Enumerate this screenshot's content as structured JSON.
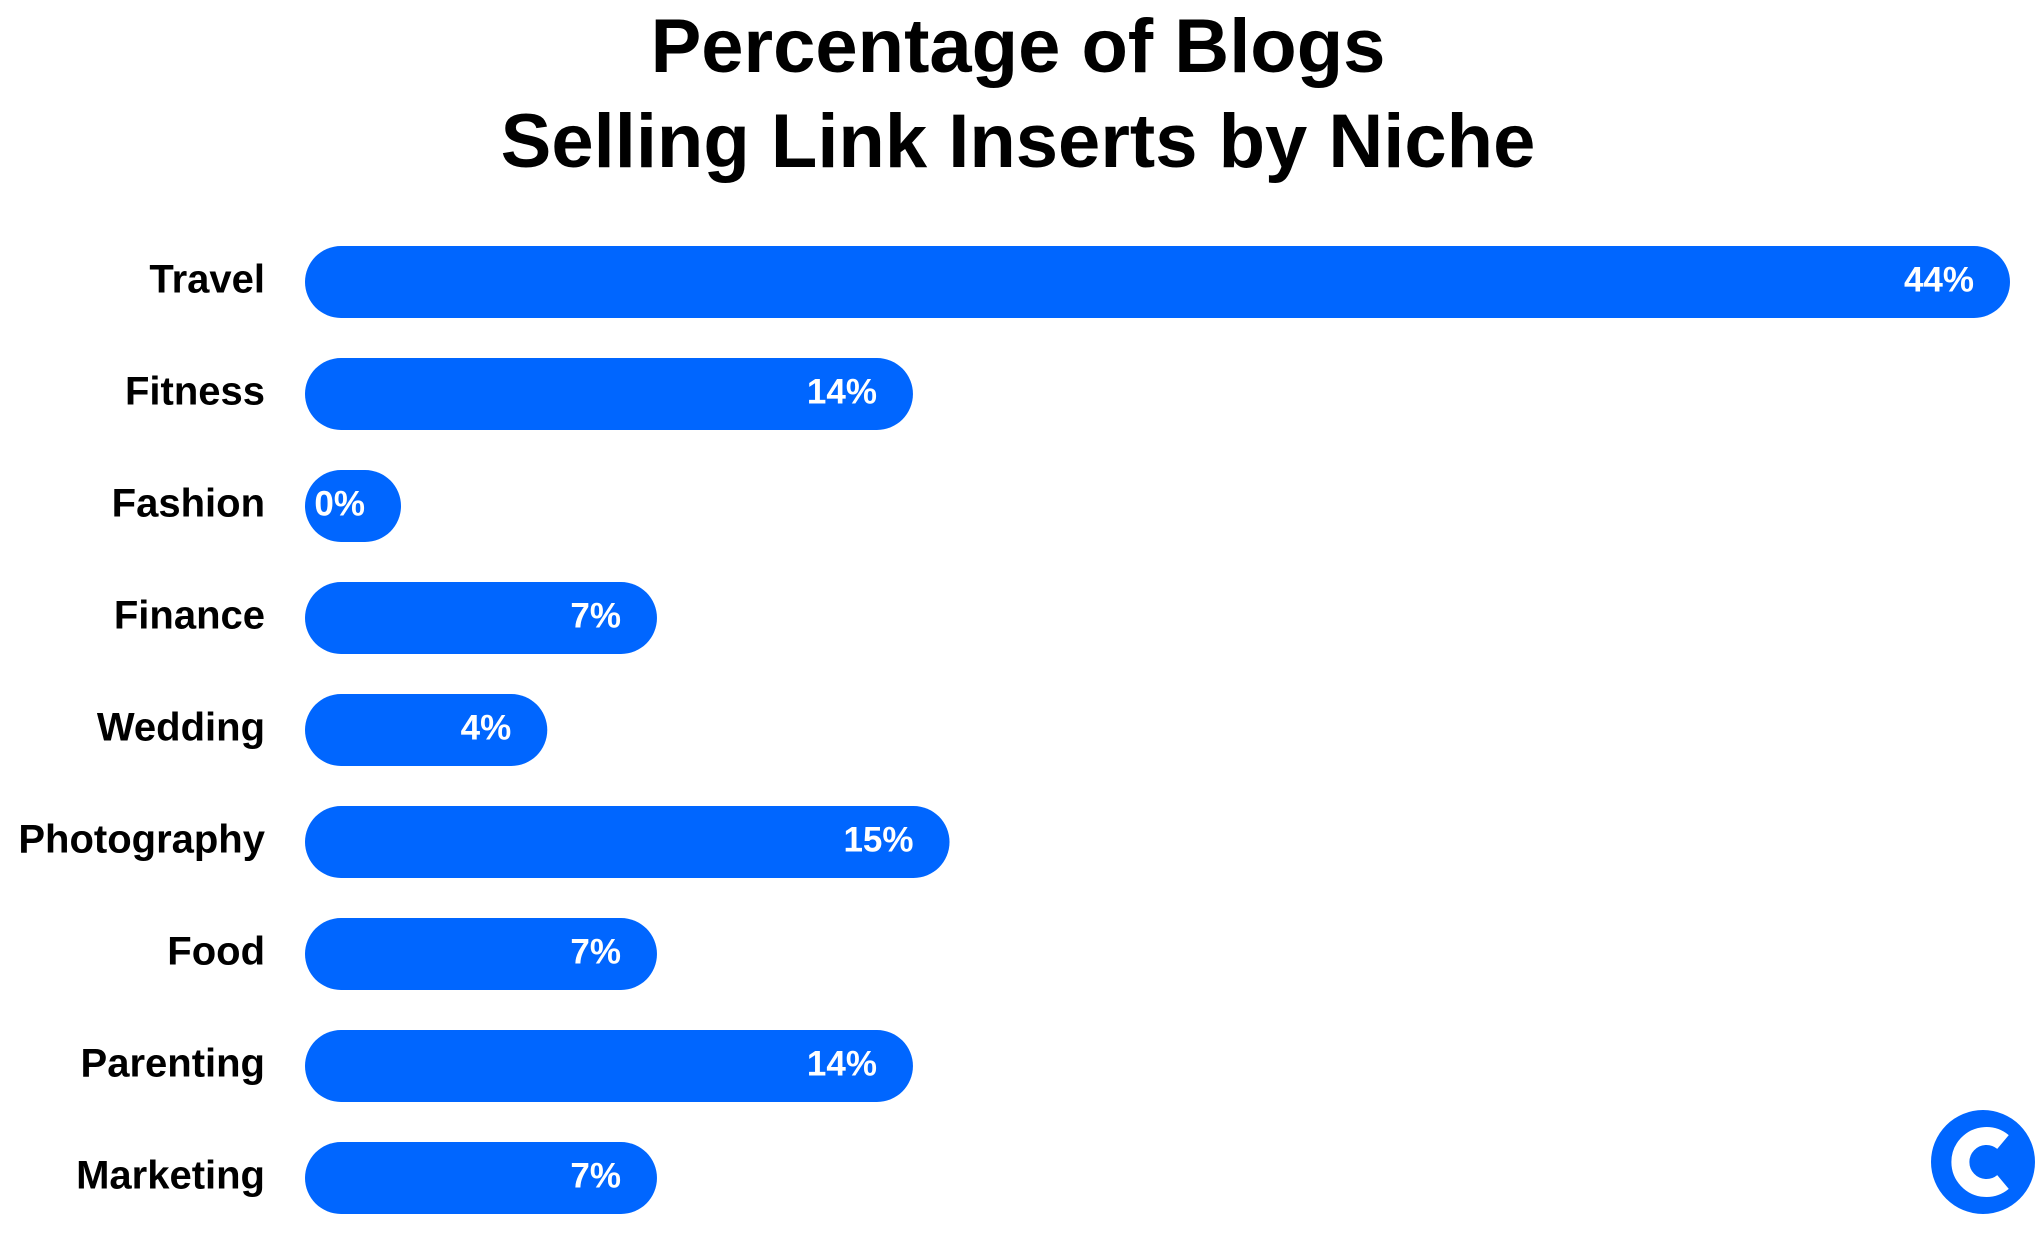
{
  "chart_data": {
    "type": "bar",
    "orientation": "horizontal",
    "title": [
      "Percentage of Blogs",
      "Selling Link Inserts by Niche"
    ],
    "categories": [
      "Travel",
      "Fitness",
      "Fashion",
      "Finance",
      "Wedding",
      "Photography",
      "Food",
      "Parenting",
      "Marketing"
    ],
    "values": [
      44,
      14,
      0,
      7,
      4,
      15,
      7,
      14,
      7
    ],
    "value_labels": [
      "44%",
      "14%",
      "0%",
      "7%",
      "4%",
      "15%",
      "7%",
      "14%",
      "7%"
    ],
    "color": "#0066ff"
  }
}
